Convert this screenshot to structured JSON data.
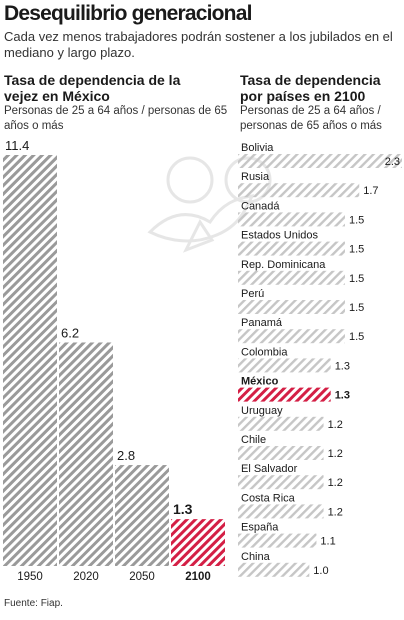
{
  "header": {
    "title": "Desequilibrio generacional",
    "subtitle": "Cada vez menos trabajadores podrán sostener a los jubilados en el mediano y largo plazo."
  },
  "left": {
    "title": "Tasa de dependencia de la vejez en México",
    "subtitle": "Personas de 25 a 64 años / personas de 65 años o más"
  },
  "right": {
    "title": "Tasa de dependencia por países en 2100",
    "subtitle": "Personas de 25 a 64 años / personas de 65 años o más"
  },
  "source": "Fuente: Fiap.",
  "colors": {
    "gray": "#9a9a9a",
    "highlight": "#d41f45"
  },
  "chart_data": [
    {
      "type": "bar",
      "title": "Tasa de dependencia de la vejez en México",
      "subtitle": "Personas de 25 a 64 años / personas de 65 años o más",
      "categories": [
        "1950",
        "2020",
        "2050",
        "2100"
      ],
      "values": [
        11.4,
        6.2,
        2.8,
        1.3
      ],
      "value_labels": [
        "11.4",
        "6.2",
        "2.8",
        "1.3"
      ],
      "highlight": "2100",
      "ylim": [
        0,
        11.4
      ]
    },
    {
      "type": "bar",
      "orientation": "horizontal",
      "title": "Tasa de dependencia por países en 2100",
      "subtitle": "Personas de 25 a 64 años / personas de 65 años o más",
      "categories": [
        "Bolivia",
        "Rusia",
        "Canadá",
        "Estados Unidos",
        "Rep. Dominicana",
        "Perú",
        "Panamá",
        "Colombia",
        "México",
        "Uruguay",
        "Chile",
        "El Salvador",
        "Costa Rica",
        "España",
        "China"
      ],
      "values": [
        2.3,
        1.7,
        1.5,
        1.5,
        1.5,
        1.5,
        1.5,
        1.3,
        1.3,
        1.2,
        1.2,
        1.2,
        1.2,
        1.1,
        1.0
      ],
      "value_labels": [
        "2.3",
        "1.7",
        "1.5",
        "1.5",
        "1.5",
        "1.5",
        "1.5",
        "1.3",
        "1.3",
        "1.2",
        "1.2",
        "1.2",
        "1.2",
        "1.1",
        "1.0"
      ],
      "highlight": "México",
      "xlim": [
        0,
        2.3
      ]
    }
  ]
}
